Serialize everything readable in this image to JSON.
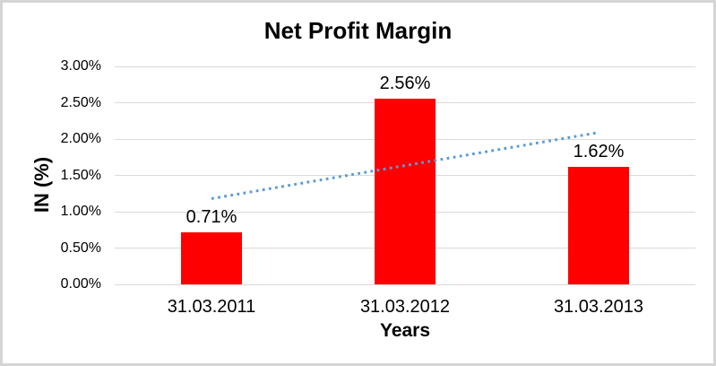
{
  "chart_data": {
    "type": "bar",
    "title": "Net Profit Margin",
    "xlabel": "Years",
    "ylabel": "IN (%)",
    "categories": [
      "31.03.2011",
      "31.03.2012",
      "31.03.2013"
    ],
    "values": [
      0.71,
      2.56,
      1.62
    ],
    "data_labels": [
      "0.71%",
      "2.56%",
      "1.62%"
    ],
    "ylim": [
      0,
      3
    ],
    "ytick_step": 0.5,
    "ytick_labels": [
      "0.00%",
      "0.50%",
      "1.00%",
      "1.50%",
      "2.00%",
      "2.50%",
      "3.00%"
    ],
    "grid": true,
    "legend_position": "none",
    "trendline": {
      "style": "dotted",
      "y_start": 1.18,
      "y_end": 2.09
    },
    "colors": {
      "bar": "#FF0000",
      "trendline": "#5B9BD5",
      "gridline": "#D9D9D9",
      "frame_border": "#D5D5D5",
      "text": "#000000"
    }
  }
}
